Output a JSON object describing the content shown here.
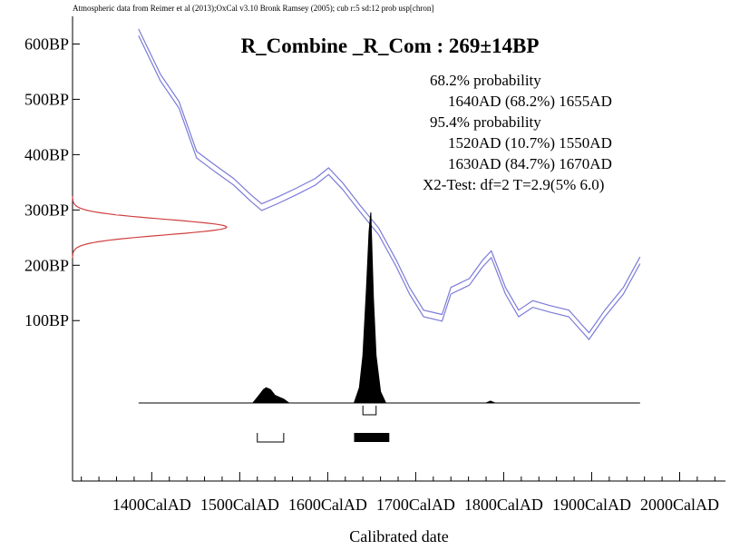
{
  "chart_data": {
    "type": "calibration",
    "header": "Atmospheric data from Reimer et al (2013);OxCal v3.10 Bronk Ramsey (2005); cub r:5 sd:12 prob usp[chron]",
    "title": "R_Combine _R_Com : 269±14BP",
    "xlabel": "Calibrated date",
    "xlim": [
      1310,
      2050
    ],
    "ylim": [
      -190,
      650
    ],
    "xticks": [
      {
        "value": 1400,
        "label": "1400CalAD"
      },
      {
        "value": 1500,
        "label": "1500CalAD"
      },
      {
        "value": 1600,
        "label": "1600CalAD"
      },
      {
        "value": 1700,
        "label": "1700CalAD"
      },
      {
        "value": 1800,
        "label": "1800CalAD"
      },
      {
        "value": 1900,
        "label": "1900CalAD"
      },
      {
        "value": 2000,
        "label": "2000CalAD"
      }
    ],
    "xminorticks": [
      1320,
      1340,
      1360,
      1380,
      1420,
      1440,
      1460,
      1480,
      1520,
      1540,
      1560,
      1580,
      1620,
      1640,
      1660,
      1680,
      1720,
      1740,
      1760,
      1780,
      1820,
      1840,
      1860,
      1880,
      1920,
      1940,
      1960,
      1980,
      2020,
      2040
    ],
    "yticks": [
      {
        "value": 100,
        "label": "100BP"
      },
      {
        "value": 200,
        "label": "200BP"
      },
      {
        "value": 300,
        "label": "300BP"
      },
      {
        "value": 400,
        "label": "400BP"
      },
      {
        "value": 500,
        "label": "500BP"
      },
      {
        "value": 600,
        "label": "600BP"
      }
    ],
    "curve": {
      "color": "#7b7bd8",
      "x": [
        1385,
        1410,
        1431,
        1451,
        1472,
        1493,
        1513,
        1525,
        1544,
        1565,
        1586,
        1601,
        1617,
        1637,
        1658,
        1678,
        1693,
        1709,
        1730,
        1740,
        1761,
        1776,
        1786,
        1802,
        1817,
        1833,
        1853,
        1874,
        1897,
        1915,
        1936,
        1955
      ],
      "upper": [
        627,
        545,
        496,
        406,
        381,
        357,
        327,
        311,
        324,
        340,
        357,
        376,
        349,
        308,
        267,
        209,
        160,
        119,
        111,
        160,
        176,
        209,
        226,
        160,
        119,
        136,
        127,
        119,
        78,
        119,
        160,
        215
      ],
      "lower": [
        615,
        533,
        484,
        394,
        369,
        345,
        315,
        299,
        312,
        328,
        345,
        364,
        337,
        296,
        255,
        197,
        148,
        107,
        99,
        148,
        164,
        197,
        214,
        148,
        107,
        124,
        115,
        107,
        66,
        107,
        148,
        203
      ]
    },
    "radiocarbon": {
      "mean": 269,
      "sd": 14,
      "color": "#d04040"
    },
    "posterior": {
      "x": [
        1385,
        1515,
        1522,
        1527,
        1530,
        1535,
        1540,
        1545,
        1550,
        1556,
        1630,
        1636,
        1640,
        1644,
        1647,
        1649,
        1652,
        1655,
        1660,
        1666,
        1780,
        1785,
        1790,
        1955
      ],
      "density": [
        0,
        0,
        0.04,
        0.07,
        0.08,
        0.07,
        0.04,
        0.03,
        0.02,
        0,
        0,
        0.08,
        0.25,
        0.6,
        0.9,
        1.0,
        0.55,
        0.25,
        0.06,
        0,
        0,
        0.01,
        0,
        0
      ]
    },
    "groups": [
      {
        "label": "68.2% probability",
        "ranges": [
          {
            "from": {
              "value": 1640,
              "label": "1640AD"
            },
            "percent": {
              "value": 68.2,
              "label": "(68.2%)"
            },
            "to": {
              "value": 1655,
              "label": "1655AD"
            }
          }
        ]
      },
      {
        "label": "95.4% probability",
        "ranges": [
          {
            "from": {
              "value": 1520,
              "label": "1520AD"
            },
            "percent": {
              "value": 10.7,
              "label": "(10.7%)"
            },
            "to": {
              "value": 1550,
              "label": "1550AD"
            }
          },
          {
            "from": {
              "value": 1630,
              "label": "1630AD"
            },
            "percent": {
              "value": 84.7,
              "label": "(84.7%)"
            },
            "to": {
              "value": 1670,
              "label": "1670AD"
            }
          }
        ]
      }
    ],
    "test": "X2-Test: df=2 T=2.9(5% 6.0)"
  }
}
